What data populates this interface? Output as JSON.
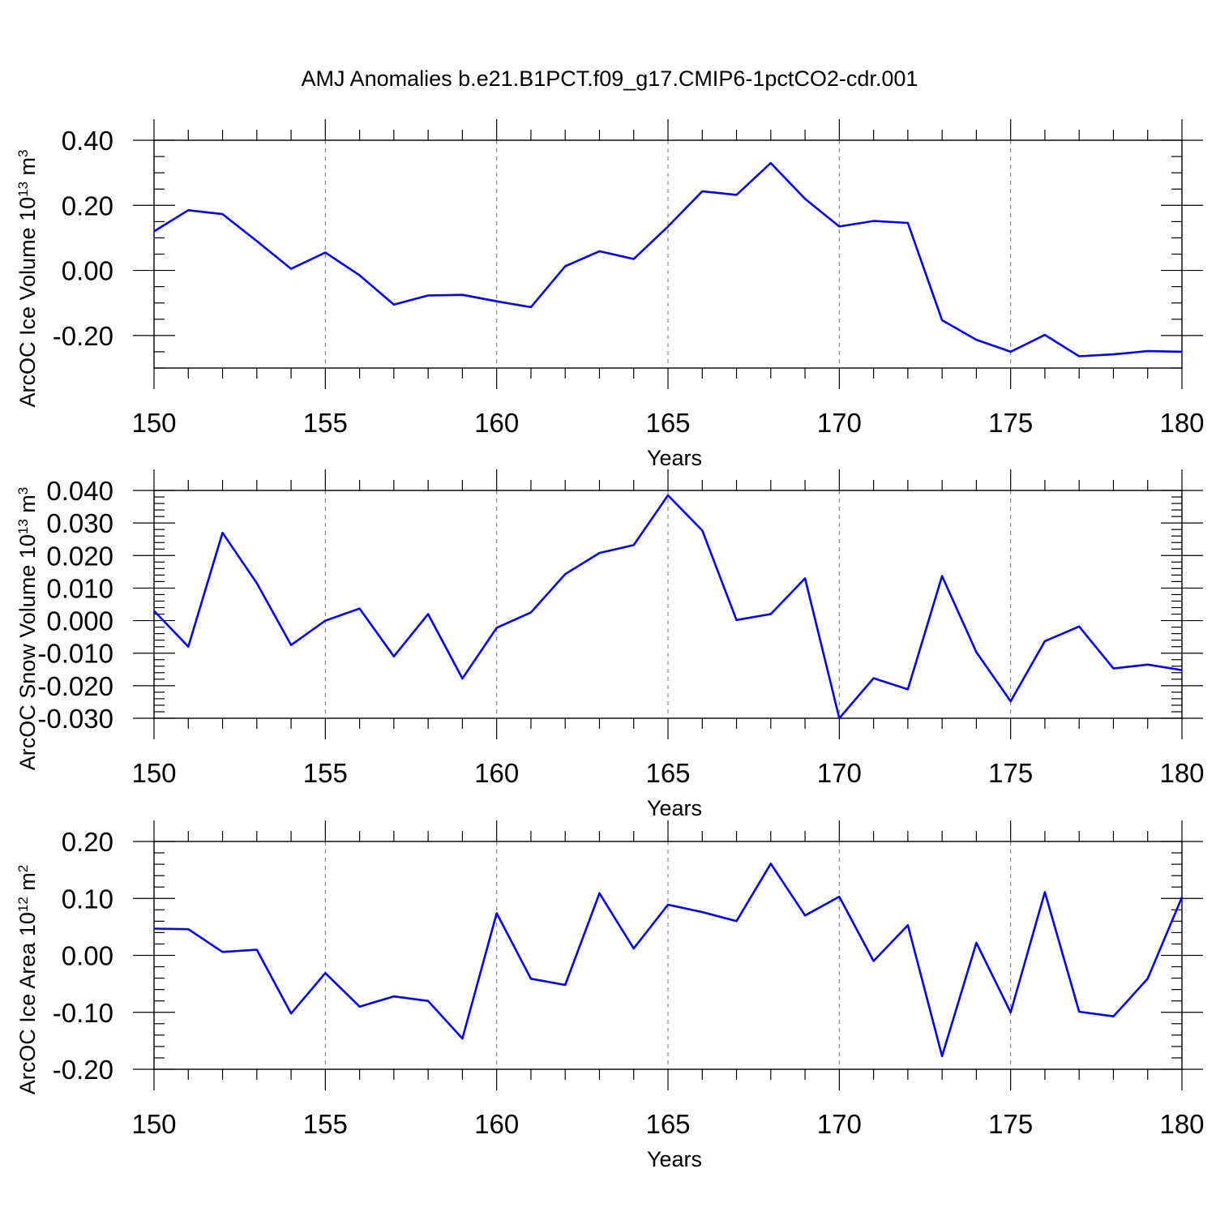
{
  "figure": {
    "title": "AMJ Anomalies b.e21.B1PCT.f09_g17.CMIP6-1pctCO2-cdr.001"
  },
  "chart_data": [
    {
      "type": "line",
      "xlabel": "Years",
      "ylabel": {
        "prefix": "ArcOC Ice Volume 10",
        "exp": "13",
        "unit": " m",
        "unit_exp": "3"
      },
      "xlim": [
        150,
        180
      ],
      "ylim": [
        -0.3,
        0.4
      ],
      "xticks": [
        150,
        155,
        160,
        165,
        170,
        175,
        180
      ],
      "yticks": [
        -0.2,
        0.0,
        0.2,
        0.4
      ],
      "ytick_labels": [
        "-0.20",
        "0.00",
        "0.20",
        "0.40"
      ],
      "ytick_minor_step": 0.05,
      "grid": "vertical dashed at major x ticks",
      "line_color": "#0000ff",
      "x": [
        150,
        151,
        152,
        153,
        154,
        155,
        156,
        157,
        158,
        159,
        160,
        161,
        162,
        163,
        164,
        165,
        166,
        167,
        168,
        169,
        170,
        171,
        172,
        173,
        174,
        175,
        176,
        177,
        178,
        179,
        180
      ],
      "values": [
        0.12,
        0.185,
        0.173,
        0.09,
        0.005,
        0.055,
        -0.015,
        -0.105,
        -0.077,
        -0.075,
        -0.095,
        -0.113,
        0.013,
        0.059,
        0.035,
        0.135,
        0.243,
        0.232,
        0.33,
        0.22,
        0.135,
        0.152,
        0.146,
        -0.153,
        -0.213,
        -0.25,
        -0.198,
        -0.264,
        -0.258,
        -0.248,
        -0.25
      ]
    },
    {
      "type": "line",
      "xlabel": "Years",
      "ylabel": {
        "prefix": "ArcOC Snow Volume 10",
        "exp": "13",
        "unit": " m",
        "unit_exp": "3"
      },
      "xlim": [
        150,
        180
      ],
      "ylim": [
        -0.03,
        0.04
      ],
      "xticks": [
        150,
        155,
        160,
        165,
        170,
        175,
        180
      ],
      "yticks": [
        -0.03,
        -0.02,
        -0.01,
        0.0,
        0.01,
        0.02,
        0.03,
        0.04
      ],
      "ytick_labels": [
        "-0.030",
        "-0.020",
        "-0.010",
        "0.000",
        "0.010",
        "0.020",
        "0.030",
        "0.040"
      ],
      "ytick_minor_step": 0.002,
      "grid": "vertical dashed at major x ticks",
      "line_color": "#0000ff",
      "x": [
        150,
        151,
        152,
        153,
        154,
        155,
        156,
        157,
        158,
        159,
        160,
        161,
        162,
        163,
        164,
        165,
        166,
        167,
        168,
        169,
        170,
        171,
        172,
        173,
        174,
        175,
        176,
        177,
        178,
        179,
        180
      ],
      "values": [
        0.003,
        -0.008,
        0.027,
        0.0115,
        -0.0075,
        0.0,
        0.0037,
        -0.011,
        0.002,
        -0.0178,
        -0.0022,
        0.0025,
        0.0143,
        0.0208,
        0.0232,
        0.0385,
        0.0277,
        0.0002,
        0.002,
        0.013,
        -0.03,
        -0.0177,
        -0.0211,
        0.0137,
        -0.0097,
        -0.0248,
        -0.0063,
        -0.0018,
        -0.0147,
        -0.0135,
        -0.0152
      ]
    },
    {
      "type": "line",
      "xlabel": "Years",
      "ylabel": {
        "prefix": "ArcOC Ice Area 10",
        "exp": "12",
        "unit": " m",
        "unit_exp": "2"
      },
      "xlim": [
        150,
        180
      ],
      "ylim": [
        -0.2,
        0.2
      ],
      "xticks": [
        150,
        155,
        160,
        165,
        170,
        175,
        180
      ],
      "yticks": [
        -0.2,
        -0.1,
        0.0,
        0.1,
        0.2
      ],
      "ytick_labels": [
        "-0.20",
        "-0.10",
        "0.00",
        "0.10",
        "0.20"
      ],
      "ytick_minor_step": 0.02,
      "grid": "vertical dashed at major x ticks",
      "line_color": "#0000ff",
      "x": [
        150,
        151,
        152,
        153,
        154,
        155,
        156,
        157,
        158,
        159,
        160,
        161,
        162,
        163,
        164,
        165,
        166,
        167,
        168,
        169,
        170,
        171,
        172,
        173,
        174,
        175,
        176,
        177,
        178,
        179,
        180
      ],
      "values": [
        0.047,
        0.046,
        0.006,
        0.01,
        -0.102,
        -0.031,
        -0.09,
        -0.072,
        -0.08,
        -0.146,
        0.074,
        -0.041,
        -0.052,
        0.109,
        0.012,
        0.089,
        0.076,
        0.06,
        0.161,
        0.07,
        0.103,
        -0.01,
        0.053,
        -0.177,
        0.022,
        -0.1,
        0.111,
        -0.099,
        -0.107,
        -0.041,
        0.102
      ]
    }
  ]
}
